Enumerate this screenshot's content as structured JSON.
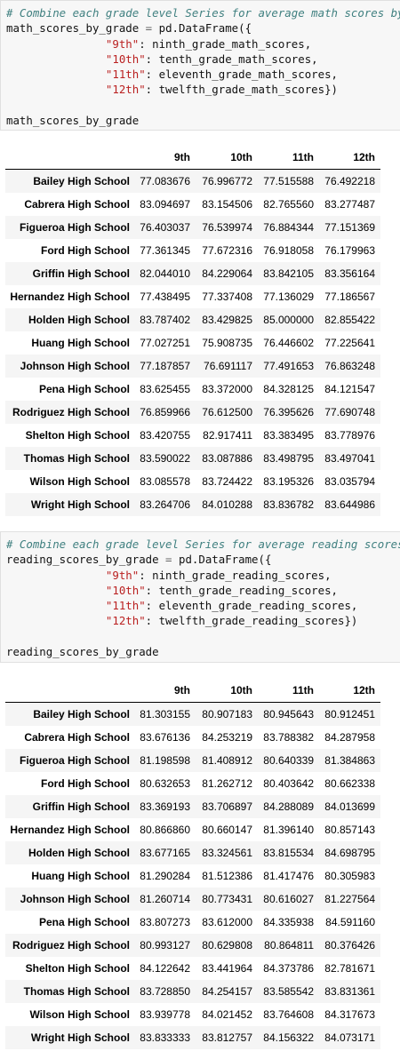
{
  "cells": [
    {
      "code": {
        "comment": "# Combine each grade level Series for average math scores by school",
        "line2_var": "math_scores_by_grade",
        "line2_rest": "pd.DataFrame({",
        "pairs": [
          {
            "key": "\"9th\"",
            "val": "ninth_grade_math_scores,"
          },
          {
            "key": "\"10th\"",
            "val": "tenth_grade_math_scores,"
          },
          {
            "key": "\"11th\"",
            "val": "eleventh_grade_math_scores,"
          },
          {
            "key": "\"12th\"",
            "val": "twelfth_grade_math_scores})"
          }
        ],
        "last_line": "math_scores_by_grade"
      },
      "table": {
        "columns": [
          "9th",
          "10th",
          "11th",
          "12th"
        ],
        "rows": [
          {
            "school": "Bailey High School",
            "v": [
              "77.083676",
              "76.996772",
              "77.515588",
              "76.492218"
            ]
          },
          {
            "school": "Cabrera High School",
            "v": [
              "83.094697",
              "83.154506",
              "82.765560",
              "83.277487"
            ]
          },
          {
            "school": "Figueroa High School",
            "v": [
              "76.403037",
              "76.539974",
              "76.884344",
              "77.151369"
            ]
          },
          {
            "school": "Ford High School",
            "v": [
              "77.361345",
              "77.672316",
              "76.918058",
              "76.179963"
            ]
          },
          {
            "school": "Griffin High School",
            "v": [
              "82.044010",
              "84.229064",
              "83.842105",
              "83.356164"
            ]
          },
          {
            "school": "Hernandez High School",
            "v": [
              "77.438495",
              "77.337408",
              "77.136029",
              "77.186567"
            ]
          },
          {
            "school": "Holden High School",
            "v": [
              "83.787402",
              "83.429825",
              "85.000000",
              "82.855422"
            ]
          },
          {
            "school": "Huang High School",
            "v": [
              "77.027251",
              "75.908735",
              "76.446602",
              "77.225641"
            ]
          },
          {
            "school": "Johnson High School",
            "v": [
              "77.187857",
              "76.691117",
              "77.491653",
              "76.863248"
            ]
          },
          {
            "school": "Pena High School",
            "v": [
              "83.625455",
              "83.372000",
              "84.328125",
              "84.121547"
            ]
          },
          {
            "school": "Rodriguez High School",
            "v": [
              "76.859966",
              "76.612500",
              "76.395626",
              "77.690748"
            ]
          },
          {
            "school": "Shelton High School",
            "v": [
              "83.420755",
              "82.917411",
              "83.383495",
              "83.778976"
            ]
          },
          {
            "school": "Thomas High School",
            "v": [
              "83.590022",
              "83.087886",
              "83.498795",
              "83.497041"
            ]
          },
          {
            "school": "Wilson High School",
            "v": [
              "83.085578",
              "83.724422",
              "83.195326",
              "83.035794"
            ]
          },
          {
            "school": "Wright High School",
            "v": [
              "83.264706",
              "84.010288",
              "83.836782",
              "83.644986"
            ]
          }
        ]
      }
    },
    {
      "code": {
        "comment": "# Combine each grade level Series for average reading scores by school",
        "line2_var": "reading_scores_by_grade",
        "line2_rest": "pd.DataFrame({",
        "pairs": [
          {
            "key": "\"9th\"",
            "val": "ninth_grade_reading_scores,"
          },
          {
            "key": "\"10th\"",
            "val": "tenth_grade_reading_scores,"
          },
          {
            "key": "\"11th\"",
            "val": "eleventh_grade_reading_scores,"
          },
          {
            "key": "\"12th\"",
            "val": "twelfth_grade_reading_scores})"
          }
        ],
        "last_line": "reading_scores_by_grade"
      },
      "table": {
        "columns": [
          "9th",
          "10th",
          "11th",
          "12th"
        ],
        "rows": [
          {
            "school": "Bailey High School",
            "v": [
              "81.303155",
              "80.907183",
              "80.945643",
              "80.912451"
            ]
          },
          {
            "school": "Cabrera High School",
            "v": [
              "83.676136",
              "84.253219",
              "83.788382",
              "84.287958"
            ]
          },
          {
            "school": "Figueroa High School",
            "v": [
              "81.198598",
              "81.408912",
              "80.640339",
              "81.384863"
            ]
          },
          {
            "school": "Ford High School",
            "v": [
              "80.632653",
              "81.262712",
              "80.403642",
              "80.662338"
            ]
          },
          {
            "school": "Griffin High School",
            "v": [
              "83.369193",
              "83.706897",
              "84.288089",
              "84.013699"
            ]
          },
          {
            "school": "Hernandez High School",
            "v": [
              "80.866860",
              "80.660147",
              "81.396140",
              "80.857143"
            ]
          },
          {
            "school": "Holden High School",
            "v": [
              "83.677165",
              "83.324561",
              "83.815534",
              "84.698795"
            ]
          },
          {
            "school": "Huang High School",
            "v": [
              "81.290284",
              "81.512386",
              "81.417476",
              "80.305983"
            ]
          },
          {
            "school": "Johnson High School",
            "v": [
              "81.260714",
              "80.773431",
              "80.616027",
              "81.227564"
            ]
          },
          {
            "school": "Pena High School",
            "v": [
              "83.807273",
              "83.612000",
              "84.335938",
              "84.591160"
            ]
          },
          {
            "school": "Rodriguez High School",
            "v": [
              "80.993127",
              "80.629808",
              "80.864811",
              "80.376426"
            ]
          },
          {
            "school": "Shelton High School",
            "v": [
              "84.122642",
              "83.441964",
              "84.373786",
              "82.781671"
            ]
          },
          {
            "school": "Thomas High School",
            "v": [
              "83.728850",
              "84.254157",
              "83.585542",
              "83.831361"
            ]
          },
          {
            "school": "Wilson High School",
            "v": [
              "83.939778",
              "84.021452",
              "83.764608",
              "84.317673"
            ]
          },
          {
            "school": "Wright High School",
            "v": [
              "83.833333",
              "83.812757",
              "84.156322",
              "84.073171"
            ]
          }
        ]
      }
    }
  ]
}
